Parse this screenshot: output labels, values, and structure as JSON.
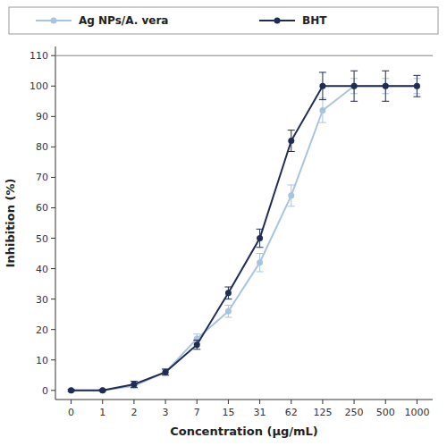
{
  "chart_data": {
    "type": "line",
    "xlabel": "Concentration (μg/mL)",
    "ylabel": "Inhibition (%)",
    "categories": [
      "0",
      "1",
      "2",
      "3",
      "7",
      "15",
      "31",
      "62",
      "125",
      "250",
      "500",
      "1000"
    ],
    "series": [
      {
        "name": "Ag NPs/A. vera",
        "color": "#a8c4e0",
        "values": [
          0,
          0,
          1.5,
          6,
          17,
          26,
          42,
          64,
          92,
          100,
          100,
          100
        ],
        "errors": [
          0.3,
          0.3,
          0.8,
          1.0,
          1.5,
          2.0,
          3.0,
          3.5,
          4.0,
          2.5,
          2.5,
          2.5
        ]
      },
      {
        "name": "BHT",
        "color": "#1e2d54",
        "values": [
          0,
          0,
          2,
          6,
          15,
          32,
          50,
          82,
          100,
          100,
          100,
          100
        ],
        "errors": [
          0.3,
          0.3,
          1.0,
          1.0,
          1.5,
          2.0,
          3.0,
          3.5,
          4.5,
          5.0,
          5.0,
          3.5
        ]
      }
    ],
    "marker": "circle",
    "hline": 110,
    "ylim": [
      -3,
      113
    ],
    "yticks": [
      0,
      10,
      20,
      30,
      40,
      50,
      60,
      70,
      80,
      90,
      100,
      110
    ],
    "grid": false,
    "legend": "top"
  }
}
